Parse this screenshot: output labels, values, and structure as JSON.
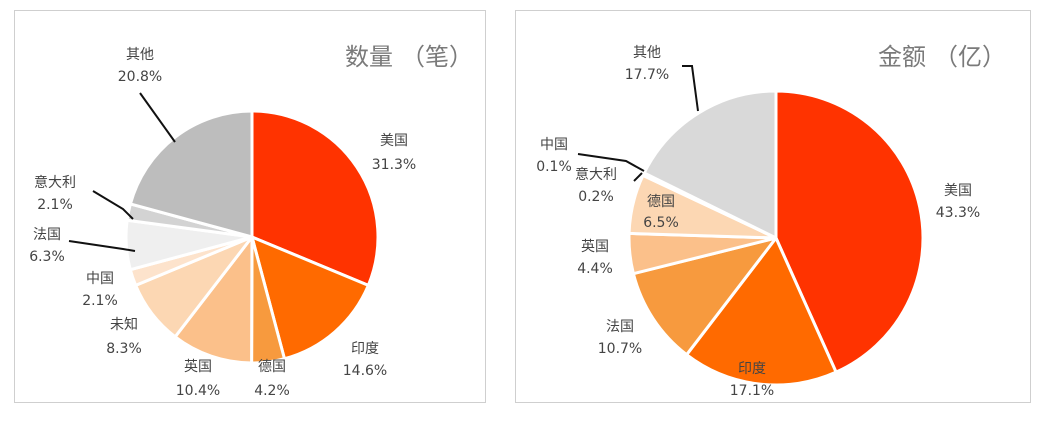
{
  "chart_data": [
    {
      "type": "pie",
      "title": "数量（笔）",
      "title_parts": [
        "数量",
        "（",
        "笔",
        "）"
      ],
      "slices": [
        {
          "name": "美国",
          "value": 31.3,
          "value_label": "31.3%",
          "color": "#ff3300"
        },
        {
          "name": "印度",
          "value": 14.6,
          "value_label": "14.6%",
          "color": "#ff6a00"
        },
        {
          "name": "德国",
          "value": 4.2,
          "value_label": "4.2%",
          "color": "#f79a3e"
        },
        {
          "name": "英国",
          "value": 10.4,
          "value_label": "10.4%",
          "color": "#fbc08a"
        },
        {
          "name": "未知",
          "value": 8.3,
          "value_label": "8.3%",
          "color": "#fcd7b3"
        },
        {
          "name": "中国",
          "value": 2.1,
          "value_label": "2.1%",
          "color": "#fde3cc"
        },
        {
          "name": "法国",
          "value": 6.3,
          "value_label": "6.3%",
          "color": "#efefef"
        },
        {
          "name": "意大利",
          "value": 2.1,
          "value_label": "2.1%",
          "color": "#d3d3d3"
        },
        {
          "name": "其他",
          "value": 20.8,
          "value_label": "20.8%",
          "color": "#bdbdbd"
        }
      ]
    },
    {
      "type": "pie",
      "title": "金额（亿）",
      "title_parts": [
        "金额",
        "（",
        "亿",
        "）"
      ],
      "slices": [
        {
          "name": "美国",
          "value": 43.3,
          "value_label": "43.3%",
          "color": "#ff3300"
        },
        {
          "name": "印度",
          "value": 17.1,
          "value_label": "17.1%",
          "color": "#ff6a00"
        },
        {
          "name": "法国",
          "value": 10.7,
          "value_label": "10.7%",
          "color": "#f79a3e"
        },
        {
          "name": "英国",
          "value": 4.4,
          "value_label": "4.4%",
          "color": "#fbc08a"
        },
        {
          "name": "德国",
          "value": 6.5,
          "value_label": "6.5%",
          "color": "#fcd7b3"
        },
        {
          "name": "意大利",
          "value": 0.2,
          "value_label": "0.2%",
          "color": "#fde3cc"
        },
        {
          "name": "中国",
          "value": 0.1,
          "value_label": "0.1%",
          "color": "#e8e8e8"
        },
        {
          "name": "其他",
          "value": 17.7,
          "value_label": "17.7%",
          "color": "#d9d9d9"
        }
      ]
    }
  ]
}
